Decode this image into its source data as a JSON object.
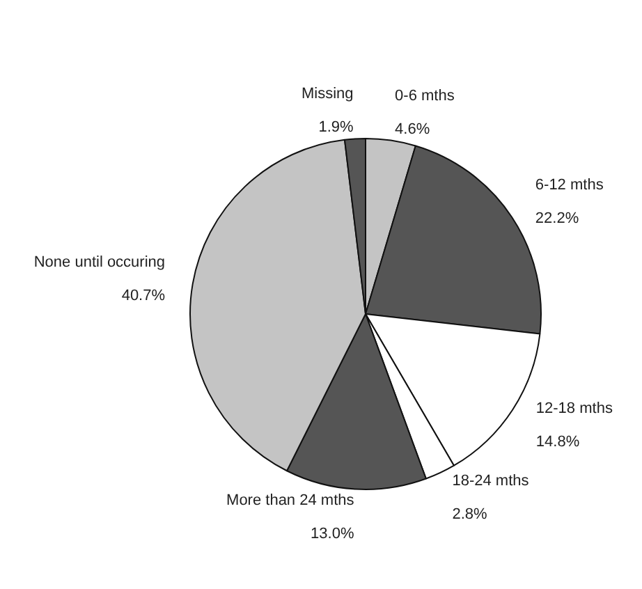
{
  "chart_data": {
    "type": "pie",
    "categories": [
      "0-6 mths",
      "6-12 mths",
      "12-18 mths",
      "18-24 mths",
      "More than 24 mths",
      "None until occuring",
      "Missing"
    ],
    "values": [
      4.6,
      22.2,
      14.8,
      2.8,
      13.0,
      40.7,
      1.9
    ],
    "colors": [
      "#c4c4c4",
      "#555555",
      "#ffffff",
      "#ffffff",
      "#555555",
      "#c4c4c4",
      "#555555"
    ],
    "value_labels": [
      "4.6%",
      "22.2%",
      "14.8%",
      "2.8%",
      "13.0%",
      "40.7%",
      "1.9%"
    ]
  }
}
